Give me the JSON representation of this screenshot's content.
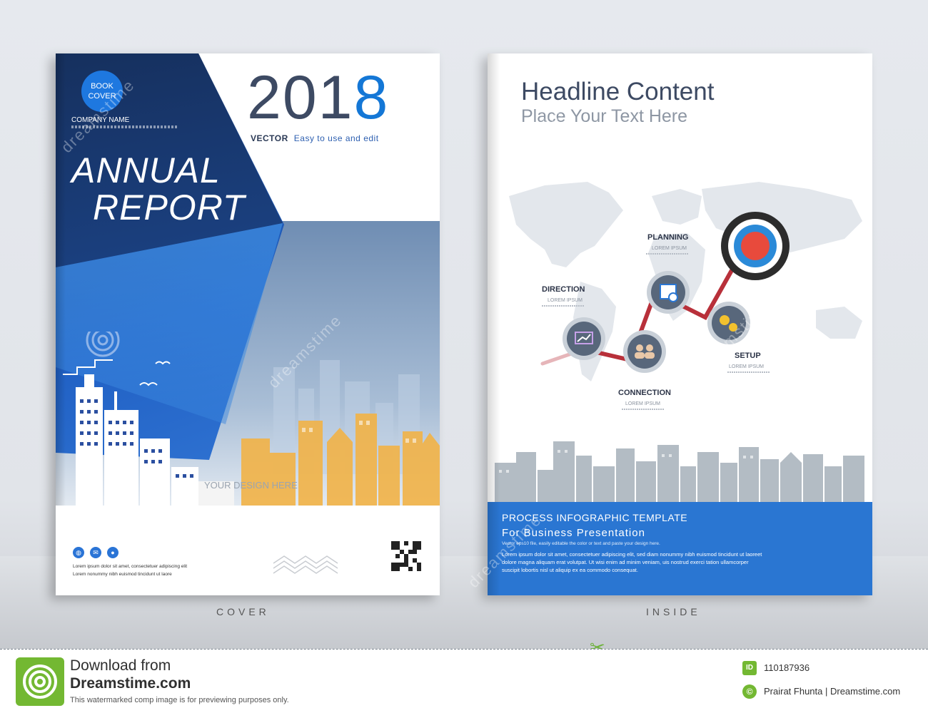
{
  "cover": {
    "badge_line1": "BOOK",
    "badge_line2": "COVER",
    "company_name": "COMPANY NAME",
    "title_line1": "ANNUAL",
    "title_line2": "REPORT",
    "year_part1": "201",
    "year_part2": "8",
    "vector_label": "VECTOR",
    "tagline": "Easy to use and edit",
    "design_here": "YOUR DESIGN HERE",
    "lorem1": "Lorem ipsum dolor sit amet, consectetuer adipiscing elit",
    "lorem2": "Lorem nonummy nibh euismod tincidunt ut laore",
    "caption": "COVER"
  },
  "inside": {
    "headline": "Headline Content",
    "subheadline": "Place Your Text Here",
    "steps": {
      "direction": "DIRECTION",
      "planning": "PLANNING",
      "connection": "CONNECTION",
      "setup": "SETUP",
      "sub": "LOREM IPSUM"
    },
    "band_title": "PROCESS  INFOGRAPHIC  TEMPLATE",
    "band_subtitle": "For Business Presentation",
    "band_small": "Vector eps10 file, easily editable the color or text and paste your design here.",
    "band_lorem1": "Lorem ipsum dolor sit amet, consectetuer adipiscing elit, sed diam nonummy nibh euismod tincidunt ut laoreet",
    "band_lorem2": "dolore magna aliquam erat volutpat. Ut wisi enim ad minim veniam,  uis nostrud exerci tation ullamcorper",
    "band_lorem3": "suscipit lobortis nisl ut aliquip ex ea commodo consequat.",
    "caption": "INSIDE"
  },
  "footer": {
    "download_line1": "Download from",
    "download_line2": "Dreamstime.com",
    "note": "This watermarked comp image is for previewing purposes only.",
    "id_label": "ID",
    "id_number": "110187936",
    "copyright_symbol": "©",
    "author": "Prairat Fhunta | Dreamstime.com"
  },
  "watermark": "dreamstime",
  "colors": {
    "brand_blue": "#1477d6",
    "dark_navy": "#3d4a63",
    "band_blue": "#2a76d2",
    "dreamstime_green": "#73b832",
    "target_red": "#e84a3c",
    "arrow_red": "#b8303a"
  },
  "icons": [
    "globe-icon",
    "mail-icon",
    "user-icon",
    "chart-icon",
    "calendar-icon",
    "people-icon",
    "gears-icon",
    "target-icon",
    "scissors-icon",
    "qr-code"
  ]
}
